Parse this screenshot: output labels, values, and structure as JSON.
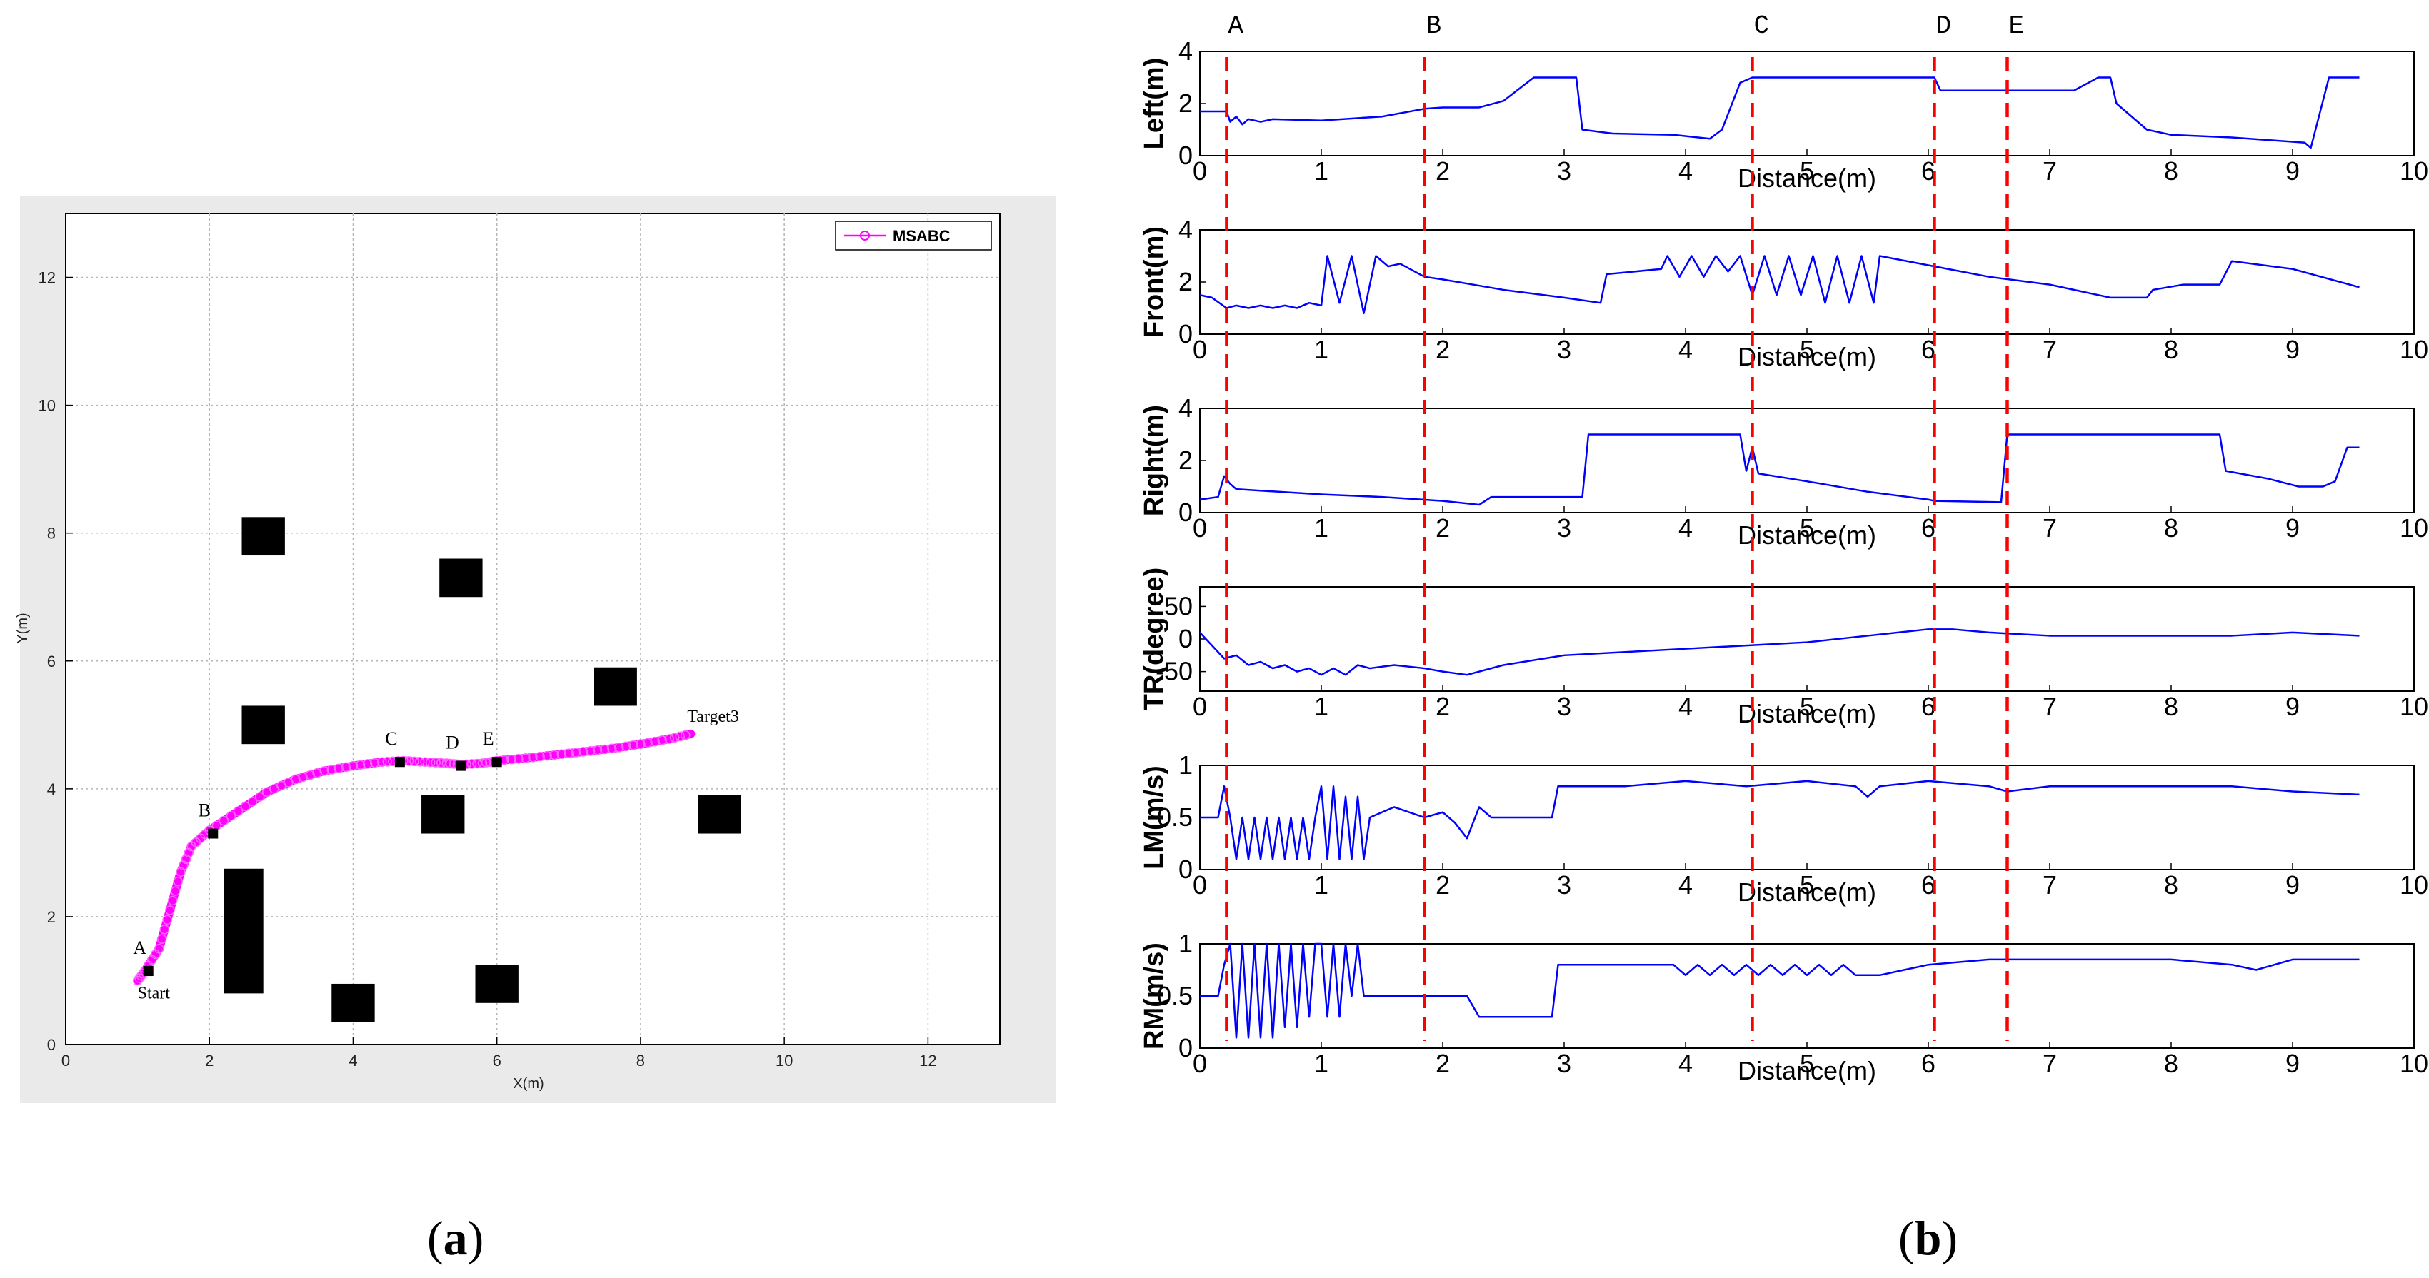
{
  "panel_labels": {
    "a": "a",
    "b": "b"
  },
  "chart_data": [
    {
      "type": "scatter",
      "id": "trajectory",
      "title": "",
      "xlabel": "X(m)",
      "ylabel": "Y(m)",
      "xlim": [
        0,
        13
      ],
      "ylim": [
        0,
        13
      ],
      "xticks": [
        "0",
        "2",
        "4",
        "6",
        "8",
        "10",
        "12"
      ],
      "yticks": [
        "0",
        "2",
        "4",
        "6",
        "8",
        "10",
        "12"
      ],
      "grid": true,
      "legend": {
        "label": "MSABC",
        "placement": "top-right"
      },
      "series": [
        {
          "name": "MSABC",
          "color": "#ff00ff",
          "x": [
            1.0,
            1.1,
            1.3,
            1.45,
            1.6,
            1.75,
            2.0,
            2.4,
            2.8,
            3.2,
            3.6,
            4.0,
            4.4,
            4.7,
            5.0,
            5.3,
            5.5,
            5.8,
            6.0,
            6.4,
            6.8,
            7.2,
            7.6,
            8.0,
            8.4,
            8.7
          ],
          "y": [
            1.0,
            1.15,
            1.5,
            2.1,
            2.7,
            3.1,
            3.35,
            3.65,
            3.95,
            4.15,
            4.28,
            4.36,
            4.42,
            4.44,
            4.42,
            4.4,
            4.38,
            4.4,
            4.44,
            4.48,
            4.53,
            4.58,
            4.63,
            4.7,
            4.78,
            4.86
          ]
        }
      ],
      "obstacles": [
        {
          "x0": 2.45,
          "y0": 7.65,
          "x1": 3.05,
          "y1": 8.25
        },
        {
          "x0": 5.2,
          "y0": 7.0,
          "x1": 5.8,
          "y1": 7.6
        },
        {
          "x0": 7.35,
          "y0": 5.3,
          "x1": 7.95,
          "y1": 5.9
        },
        {
          "x0": 2.45,
          "y0": 4.7,
          "x1": 3.05,
          "y1": 5.3
        },
        {
          "x0": 4.95,
          "y0": 3.3,
          "x1": 5.55,
          "y1": 3.9
        },
        {
          "x0": 8.8,
          "y0": 3.3,
          "x1": 9.4,
          "y1": 3.9
        },
        {
          "x0": 2.2,
          "y0": 0.8,
          "x1": 2.75,
          "y1": 2.75
        },
        {
          "x0": 3.7,
          "y0": 0.35,
          "x1": 4.3,
          "y1": 0.95
        },
        {
          "x0": 5.7,
          "y0": 0.65,
          "x1": 6.3,
          "y1": 1.25
        }
      ],
      "annotations": [
        {
          "label": "Start",
          "x": 1.0,
          "y": 0.72
        },
        {
          "label": "Target3",
          "x": 8.65,
          "y": 5.05
        }
      ],
      "markers": [
        {
          "label": "A",
          "x": 1.15,
          "y": 1.15
        },
        {
          "label": "B",
          "x": 2.05,
          "y": 3.3
        },
        {
          "label": "C",
          "x": 4.65,
          "y": 4.42
        },
        {
          "label": "D",
          "x": 5.5,
          "y": 4.36
        },
        {
          "label": "E",
          "x": 6.0,
          "y": 4.42
        }
      ]
    },
    {
      "type": "line",
      "id": "sensor_profiles",
      "xlabel": "Distance(m)",
      "xlim": [
        0,
        10
      ],
      "xticks": [
        "0",
        "1",
        "2",
        "3",
        "4",
        "5",
        "6",
        "7",
        "8",
        "9",
        "10"
      ],
      "line_color": "#0000ff",
      "events": [
        {
          "label": "A",
          "x": 0.22
        },
        {
          "label": "B",
          "x": 1.85
        },
        {
          "label": "C",
          "x": 4.55
        },
        {
          "label": "D",
          "x": 6.05
        },
        {
          "label": "E",
          "x": 6.65
        }
      ],
      "subplots": [
        {
          "ylabel": "Left(m)",
          "ylim": [
            0,
            4
          ],
          "yticks": [
            "0",
            "2",
            "4"
          ],
          "x": [
            0,
            0.22,
            0.25,
            0.3,
            0.35,
            0.4,
            0.5,
            0.6,
            1,
            1.5,
            1.85,
            2,
            2.3,
            2.5,
            2.75,
            3.1,
            3.15,
            3.4,
            3.9,
            4.2,
            4.3,
            4.45,
            4.55,
            4.6,
            5,
            5.5,
            6.05,
            6.1,
            6.2,
            7,
            7.2,
            7.4,
            7.5,
            7.55,
            7.8,
            8,
            8.5,
            9.1,
            9.15,
            9.3,
            9.55
          ],
          "y": [
            1.7,
            1.7,
            1.3,
            1.5,
            1.2,
            1.4,
            1.3,
            1.4,
            1.35,
            1.5,
            1.8,
            1.85,
            1.85,
            2.1,
            3,
            3,
            1,
            0.85,
            0.8,
            0.65,
            1,
            2.8,
            3,
            3,
            3,
            3,
            3,
            2.5,
            2.5,
            2.5,
            2.5,
            3,
            3,
            2,
            1,
            0.8,
            0.7,
            0.5,
            0.3,
            3,
            3
          ]
        },
        {
          "ylabel": "Front(m)",
          "ylim": [
            0,
            4
          ],
          "yticks": [
            "0",
            "2",
            "4"
          ],
          "x": [
            0,
            0.1,
            0.22,
            0.3,
            0.4,
            0.5,
            0.6,
            0.7,
            0.8,
            0.9,
            1,
            1.05,
            1.15,
            1.25,
            1.35,
            1.45,
            1.55,
            1.65,
            1.85,
            2,
            2.5,
            3,
            3.3,
            3.35,
            3.8,
            3.85,
            3.95,
            4.05,
            4.15,
            4.25,
            4.35,
            4.45,
            4.55,
            4.65,
            4.75,
            4.85,
            4.95,
            5.05,
            5.15,
            5.25,
            5.35,
            5.45,
            5.55,
            5.6,
            6.05,
            6.5,
            7,
            7.5,
            7.8,
            7.85,
            8.1,
            8.4,
            8.5,
            9,
            9.55
          ],
          "y": [
            1.5,
            1.4,
            1,
            1.1,
            1,
            1.1,
            1,
            1.1,
            1,
            1.2,
            1.1,
            3,
            1.2,
            3,
            0.8,
            3,
            2.6,
            2.7,
            2.2,
            2.1,
            1.7,
            1.4,
            1.2,
            2.3,
            2.5,
            3,
            2.2,
            3,
            2.2,
            3,
            2.4,
            3,
            1.5,
            3,
            1.5,
            3,
            1.5,
            3,
            1.2,
            3,
            1.2,
            3,
            1.2,
            3,
            2.6,
            2.2,
            1.9,
            1.4,
            1.4,
            1.7,
            1.9,
            1.9,
            2.8,
            2.5,
            1.8
          ]
        },
        {
          "ylabel": "Right(m)",
          "ylim": [
            0,
            4
          ],
          "yticks": [
            "0",
            "2",
            "4"
          ],
          "x": [
            0,
            0.15,
            0.2,
            0.25,
            0.3,
            1,
            1.5,
            2,
            2.3,
            2.4,
            3,
            3.15,
            3.2,
            4.45,
            4.5,
            4.55,
            4.6,
            5,
            5.5,
            6,
            6.05,
            6.6,
            6.65,
            6.7,
            8.4,
            8.45,
            8.8,
            9.05,
            9.25,
            9.35,
            9.45,
            9.55
          ],
          "y": [
            0.5,
            0.6,
            1.4,
            1.1,
            0.9,
            0.7,
            0.6,
            0.45,
            0.3,
            0.6,
            0.6,
            0.6,
            3,
            3,
            1.6,
            2.5,
            1.5,
            1.2,
            0.8,
            0.5,
            0.45,
            0.4,
            3,
            3,
            3,
            1.6,
            1.3,
            1,
            1,
            1.2,
            2.5,
            2.5
          ]
        },
        {
          "ylabel": "TR(degree)",
          "ylim": [
            -80,
            80
          ],
          "yticks": [
            "-50",
            "0",
            "50"
          ],
          "x": [
            0,
            0.1,
            0.2,
            0.3,
            0.4,
            0.5,
            0.6,
            0.7,
            0.8,
            0.9,
            1,
            1.1,
            1.2,
            1.3,
            1.4,
            1.6,
            1.85,
            2,
            2.2,
            2.5,
            3,
            3.5,
            4,
            4.5,
            5,
            5.5,
            6,
            6.2,
            6.5,
            7,
            7.5,
            8,
            8.5,
            9,
            9.55
          ],
          "y": [
            10,
            -10,
            -30,
            -25,
            -40,
            -35,
            -45,
            -40,
            -50,
            -45,
            -55,
            -45,
            -55,
            -40,
            -45,
            -40,
            -45,
            -50,
            -55,
            -40,
            -25,
            -20,
            -15,
            -10,
            -5,
            5,
            15,
            15,
            10,
            5,
            5,
            5,
            5,
            10,
            5
          ]
        },
        {
          "ylabel": "LM(m/s)",
          "ylim": [
            0,
            1
          ],
          "yticks": [
            "0",
            "0.5",
            "1"
          ],
          "x": [
            0,
            0.15,
            0.2,
            0.25,
            0.3,
            0.35,
            0.4,
            0.45,
            0.5,
            0.55,
            0.6,
            0.65,
            0.7,
            0.75,
            0.8,
            0.85,
            0.9,
            0.95,
            1,
            1.05,
            1.1,
            1.15,
            1.2,
            1.25,
            1.3,
            1.35,
            1.4,
            1.6,
            1.85,
            2,
            2.1,
            2.2,
            2.3,
            2.4,
            2.5,
            2.7,
            2.9,
            2.95,
            3.5,
            4,
            4.5,
            5,
            5.4,
            5.5,
            5.6,
            6,
            6.5,
            6.65,
            7,
            7.5,
            8,
            8.5,
            9,
            9.55
          ],
          "y": [
            0.5,
            0.5,
            0.8,
            0.5,
            0.1,
            0.5,
            0.1,
            0.5,
            0.1,
            0.5,
            0.1,
            0.5,
            0.1,
            0.5,
            0.1,
            0.5,
            0.1,
            0.5,
            0.8,
            0.1,
            0.8,
            0.1,
            0.7,
            0.1,
            0.7,
            0.1,
            0.5,
            0.6,
            0.5,
            0.55,
            0.45,
            0.3,
            0.6,
            0.5,
            0.5,
            0.5,
            0.5,
            0.8,
            0.8,
            0.85,
            0.8,
            0.85,
            0.8,
            0.7,
            0.8,
            0.85,
            0.8,
            0.75,
            0.8,
            0.8,
            0.8,
            0.8,
            0.75,
            0.72
          ]
        },
        {
          "ylabel": "RM(m/s)",
          "ylim": [
            0,
            1
          ],
          "yticks": [
            "0",
            "0.5",
            "1"
          ],
          "x": [
            0,
            0.15,
            0.2,
            0.25,
            0.3,
            0.35,
            0.4,
            0.45,
            0.5,
            0.55,
            0.6,
            0.65,
            0.7,
            0.75,
            0.8,
            0.85,
            0.9,
            0.95,
            1,
            1.05,
            1.1,
            1.15,
            1.2,
            1.25,
            1.3,
            1.35,
            1.4,
            1.6,
            1.85,
            2.2,
            2.3,
            2.6,
            2.9,
            2.95,
            3.5,
            3.9,
            4,
            4.1,
            4.2,
            4.3,
            4.4,
            4.5,
            4.6,
            4.7,
            4.8,
            4.9,
            5,
            5.1,
            5.2,
            5.3,
            5.4,
            5.6,
            6,
            6.5,
            7,
            7.5,
            8,
            8.5,
            8.7,
            9,
            9.55
          ],
          "y": [
            0.5,
            0.5,
            0.8,
            1,
            0.1,
            1,
            0.1,
            1,
            0.1,
            1,
            0.1,
            1,
            0.2,
            1,
            0.2,
            1,
            0.3,
            1,
            1,
            0.3,
            1,
            0.3,
            1,
            0.5,
            1,
            0.5,
            0.5,
            0.5,
            0.5,
            0.5,
            0.3,
            0.3,
            0.3,
            0.8,
            0.8,
            0.8,
            0.7,
            0.8,
            0.7,
            0.8,
            0.7,
            0.8,
            0.7,
            0.8,
            0.7,
            0.8,
            0.7,
            0.8,
            0.7,
            0.8,
            0.7,
            0.7,
            0.8,
            0.85,
            0.85,
            0.85,
            0.85,
            0.8,
            0.75,
            0.85,
            0.85
          ]
        }
      ]
    }
  ]
}
